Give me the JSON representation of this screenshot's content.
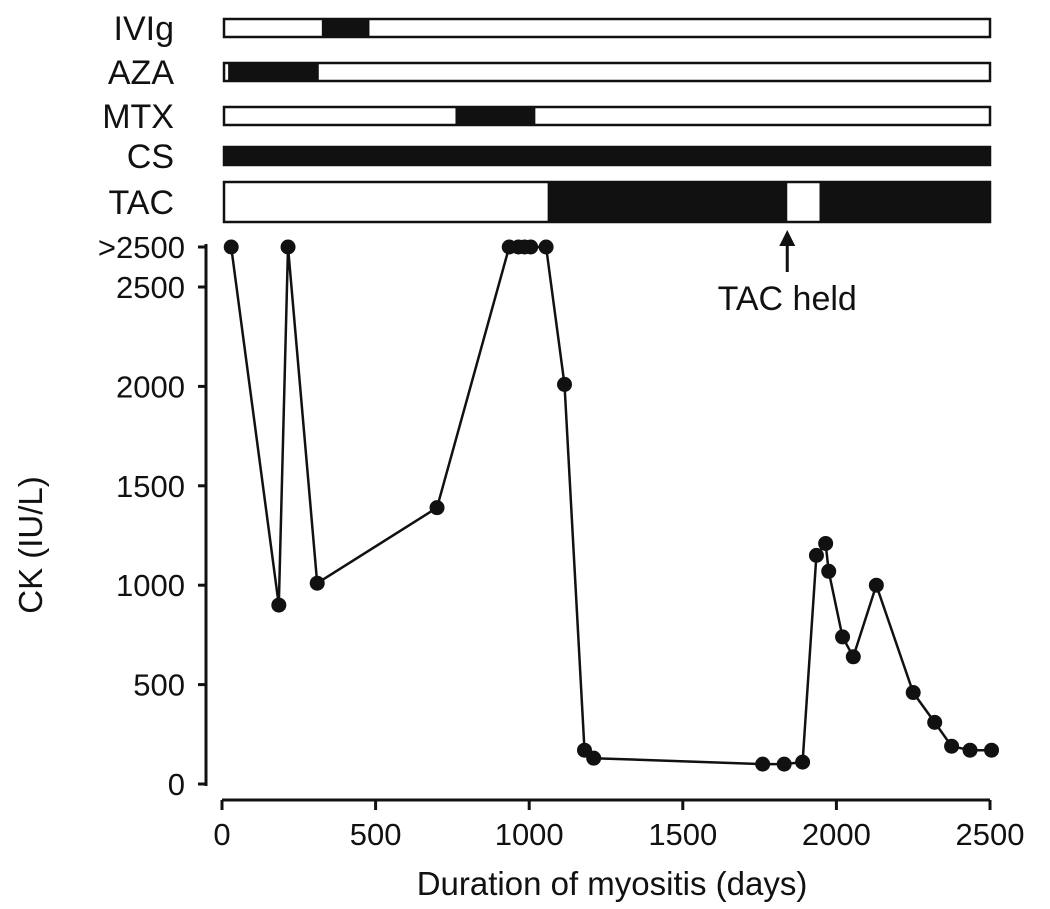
{
  "chart_data": {
    "type": "line",
    "xlabel": "Duration of myositis (days)",
    "ylabel": "CK (IU/L)",
    "xlim": [
      0,
      2500
    ],
    "ylim": [
      0,
      2500
    ],
    "x_ticks": [
      "0",
      "500",
      "1000",
      "1500",
      "2000",
      "2500"
    ],
    "y_ticks": [
      "0",
      "500",
      "1000",
      "1500",
      "2000",
      "2500",
      ">2500"
    ],
    "over_limit_label": ">2500",
    "grid": false,
    "series": [
      {
        "x": [
          30,
          185,
          215,
          310,
          700,
          935,
          965,
          985,
          1005,
          1055,
          1115,
          1180,
          1210,
          1760,
          1830,
          1890,
          1935,
          1965,
          1975,
          2020,
          2055,
          2130,
          2250,
          2320,
          2375,
          2435,
          2505
        ],
        "y": [
          ">2500",
          900,
          ">2500",
          1010,
          1390,
          ">2500",
          ">2500",
          ">2500",
          ">2500",
          ">2500",
          2010,
          170,
          130,
          100,
          100,
          110,
          1150,
          1210,
          1070,
          740,
          640,
          1000,
          460,
          310,
          190,
          170,
          170
        ]
      }
    ],
    "treatments": [
      {
        "label": "IVIg",
        "style": "thin",
        "periods": [
          [
            325,
            480
          ]
        ]
      },
      {
        "label": "AZA",
        "style": "thin",
        "periods": [
          [
            20,
            315
          ]
        ]
      },
      {
        "label": "MTX",
        "style": "thin",
        "periods": [
          [
            760,
            1020
          ]
        ]
      },
      {
        "label": "CS",
        "style": "thin",
        "periods": [
          [
            5,
            2510
          ]
        ]
      },
      {
        "label": "TAC",
        "style": "thick",
        "periods": [
          [
            1060,
            1840
          ],
          [
            1945,
            2510
          ]
        ]
      }
    ],
    "annotation": {
      "text": "TAC held",
      "x": 1840
    }
  }
}
